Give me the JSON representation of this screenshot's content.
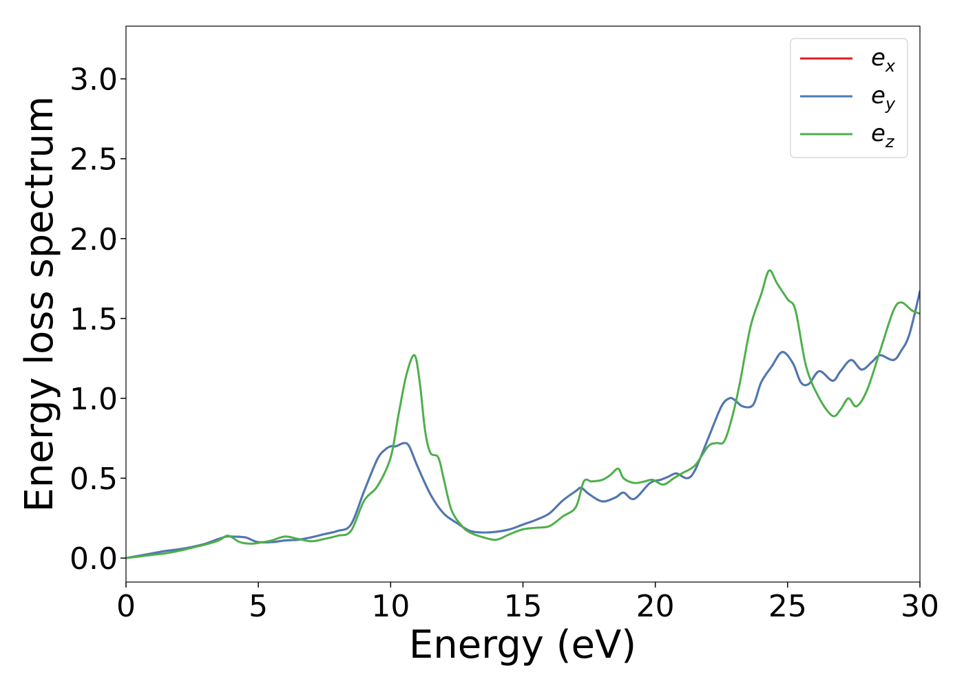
{
  "chart_data": {
    "type": "line",
    "xlabel": "Energy (eV)",
    "ylabel": "Energy loss spectrum",
    "xlim": [
      0,
      30
    ],
    "ylim": [
      -0.15,
      3.33
    ],
    "xticks": [
      0,
      5,
      10,
      15,
      20,
      25,
      30
    ],
    "xtick_labels": [
      "0",
      "5",
      "10",
      "15",
      "20",
      "25",
      "30"
    ],
    "yticks": [
      0.0,
      0.5,
      1.0,
      1.5,
      2.0,
      2.5,
      3.0
    ],
    "ytick_labels": [
      "0.0",
      "0.5",
      "1.0",
      "1.5",
      "2.0",
      "2.5",
      "3.0"
    ],
    "grid": false,
    "legend_position": "top-right",
    "series": [
      {
        "name": "e",
        "sub": "x",
        "color": "#e41a1c",
        "x": [
          0,
          0.5,
          1,
          1.5,
          2,
          2.5,
          3,
          3.5,
          3.8,
          4,
          4.5,
          4.8,
          5,
          5.5,
          6,
          6.5,
          7,
          7.5,
          8,
          8.5,
          9,
          9.5,
          9.8,
          10,
          10.2,
          10.5,
          10.7,
          11,
          11.5,
          12,
          12.5,
          13,
          13.5,
          14,
          14.5,
          15,
          15.5,
          16,
          16.5,
          17,
          17.2,
          17.5,
          18,
          18.5,
          18.8,
          19.2,
          19.8,
          20.2,
          20.5,
          20.8,
          21.2,
          21.5,
          22,
          22.5,
          22.8,
          23,
          23.3,
          23.7,
          24,
          24.4,
          24.8,
          25.2,
          25.5,
          25.8,
          26.2,
          26.7,
          27,
          27.4,
          27.8,
          28.2,
          28.5,
          29,
          29.3,
          29.6,
          30
        ],
        "y": [
          0,
          0.015,
          0.03,
          0.045,
          0.055,
          0.07,
          0.09,
          0.12,
          0.135,
          0.135,
          0.13,
          0.11,
          0.1,
          0.1,
          0.11,
          0.115,
          0.13,
          0.15,
          0.17,
          0.21,
          0.42,
          0.62,
          0.68,
          0.7,
          0.7,
          0.72,
          0.7,
          0.58,
          0.4,
          0.28,
          0.22,
          0.17,
          0.16,
          0.165,
          0.18,
          0.21,
          0.24,
          0.28,
          0.36,
          0.42,
          0.44,
          0.4,
          0.355,
          0.38,
          0.41,
          0.37,
          0.47,
          0.49,
          0.51,
          0.53,
          0.5,
          0.55,
          0.75,
          0.95,
          1.0,
          0.99,
          0.95,
          0.96,
          1.1,
          1.2,
          1.29,
          1.22,
          1.1,
          1.09,
          1.17,
          1.11,
          1.17,
          1.24,
          1.18,
          1.23,
          1.27,
          1.24,
          1.3,
          1.4,
          1.67
        ]
      },
      {
        "name": "e",
        "sub": "y",
        "color": "#4a7ab5",
        "x": [
          0,
          0.5,
          1,
          1.5,
          2,
          2.5,
          3,
          3.5,
          3.8,
          4,
          4.5,
          4.8,
          5,
          5.5,
          6,
          6.5,
          7,
          7.5,
          8,
          8.5,
          9,
          9.5,
          9.8,
          10,
          10.2,
          10.5,
          10.7,
          11,
          11.5,
          12,
          12.5,
          13,
          13.5,
          14,
          14.5,
          15,
          15.5,
          16,
          16.5,
          17,
          17.2,
          17.5,
          18,
          18.5,
          18.8,
          19.2,
          19.8,
          20.2,
          20.5,
          20.8,
          21.2,
          21.5,
          22,
          22.5,
          22.8,
          23,
          23.3,
          23.7,
          24,
          24.4,
          24.8,
          25.2,
          25.5,
          25.8,
          26.2,
          26.7,
          27,
          27.4,
          27.8,
          28.2,
          28.5,
          29,
          29.3,
          29.6,
          30
        ],
        "y": [
          0,
          0.015,
          0.03,
          0.045,
          0.055,
          0.07,
          0.09,
          0.12,
          0.135,
          0.135,
          0.13,
          0.11,
          0.1,
          0.1,
          0.11,
          0.115,
          0.13,
          0.15,
          0.17,
          0.21,
          0.42,
          0.62,
          0.68,
          0.7,
          0.7,
          0.72,
          0.7,
          0.58,
          0.4,
          0.28,
          0.22,
          0.17,
          0.16,
          0.165,
          0.18,
          0.21,
          0.24,
          0.28,
          0.36,
          0.42,
          0.44,
          0.4,
          0.355,
          0.38,
          0.41,
          0.37,
          0.47,
          0.49,
          0.51,
          0.53,
          0.5,
          0.55,
          0.75,
          0.95,
          1.0,
          0.99,
          0.95,
          0.96,
          1.1,
          1.2,
          1.29,
          1.22,
          1.1,
          1.09,
          1.17,
          1.11,
          1.17,
          1.24,
          1.18,
          1.23,
          1.27,
          1.24,
          1.3,
          1.4,
          1.67
        ]
      },
      {
        "name": "e",
        "sub": "z",
        "color": "#4daf4a",
        "x": [
          0,
          0.5,
          1,
          1.5,
          2,
          2.5,
          3,
          3.5,
          3.8,
          4,
          4.3,
          4.7,
          5,
          5.5,
          6,
          6.5,
          7,
          7.5,
          8,
          8.5,
          9,
          9.5,
          10,
          10.3,
          10.6,
          10.9,
          11.1,
          11.3,
          11.5,
          11.8,
          12,
          12.3,
          12.7,
          13,
          13.5,
          14,
          14.5,
          15,
          15.5,
          16,
          16.5,
          17,
          17.3,
          17.6,
          18,
          18.3,
          18.6,
          18.8,
          19.2,
          19.6,
          19.9,
          20.3,
          20.7,
          21,
          21.5,
          22,
          22.3,
          22.6,
          22.9,
          23.2,
          23.6,
          24,
          24.3,
          24.6,
          25,
          25.3,
          25.7,
          26.2,
          26.7,
          27,
          27.3,
          27.6,
          28,
          28.5,
          29,
          29.3,
          29.7,
          30
        ],
        "y": [
          0,
          0.01,
          0.02,
          0.03,
          0.045,
          0.065,
          0.085,
          0.11,
          0.14,
          0.13,
          0.1,
          0.09,
          0.095,
          0.11,
          0.135,
          0.12,
          0.105,
          0.12,
          0.14,
          0.17,
          0.36,
          0.45,
          0.63,
          0.9,
          1.15,
          1.27,
          1.1,
          0.8,
          0.66,
          0.63,
          0.5,
          0.3,
          0.2,
          0.16,
          0.13,
          0.115,
          0.15,
          0.18,
          0.19,
          0.2,
          0.26,
          0.32,
          0.48,
          0.48,
          0.49,
          0.52,
          0.56,
          0.5,
          0.47,
          0.48,
          0.49,
          0.46,
          0.5,
          0.53,
          0.58,
          0.7,
          0.72,
          0.73,
          0.88,
          1.1,
          1.45,
          1.65,
          1.8,
          1.72,
          1.62,
          1.55,
          1.2,
          1.0,
          0.89,
          0.93,
          1.0,
          0.95,
          1.05,
          1.3,
          1.55,
          1.6,
          1.55,
          1.53
        ]
      }
    ]
  }
}
